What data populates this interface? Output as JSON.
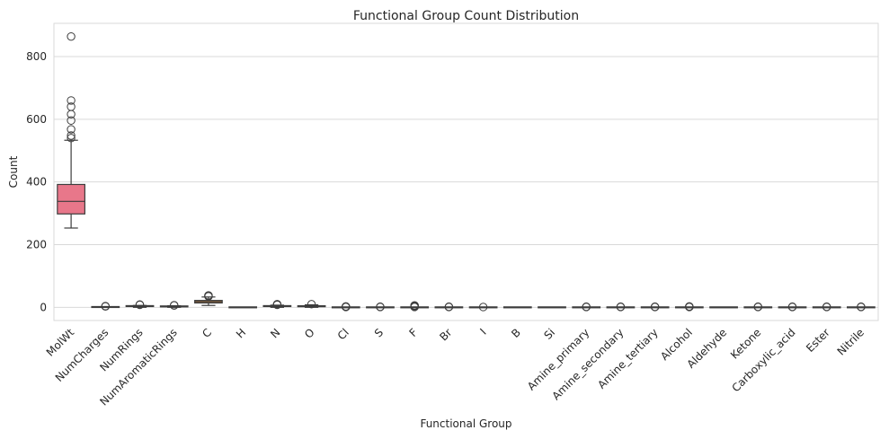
{
  "chart_data": {
    "type": "box",
    "title": "Functional Group Count Distribution",
    "xlabel": "Functional Group",
    "ylabel": "Count",
    "ylim": [
      -42,
      906
    ],
    "yticks": [
      0,
      200,
      400,
      600,
      800
    ],
    "grid": true,
    "colors": {
      "background": "#ffffff",
      "grid": "#d9d9d9",
      "text": "#262626",
      "box_edge": "#3d3d3d",
      "box_fill": "#e8778a",
      "box_fill_2": "#e06c62",
      "box_fill_3": "#d4873c"
    },
    "categories": [
      "MolWt",
      "NumCharges",
      "NumRings",
      "NumAromaticRings",
      "C",
      "H",
      "N",
      "O",
      "Cl",
      "S",
      "F",
      "Br",
      "I",
      "B",
      "Si",
      "Amine_primary",
      "Amine_secondary",
      "Amine_tertiary",
      "Alcohol",
      "Aldehyde",
      "Ketone",
      "Carboxylic_acid",
      "Ester",
      "Nitrile"
    ],
    "boxes": [
      {
        "q1": 298,
        "median": 338,
        "q3": 392,
        "whislo": 253,
        "whishi": 533,
        "fliers": [
          540,
          548,
          568,
          596,
          616,
          640,
          660,
          864
        ]
      },
      {
        "q1": 0,
        "median": 0,
        "q3": 1,
        "whislo": 0,
        "whishi": 2,
        "fliers": [
          3,
          4
        ]
      },
      {
        "q1": 2,
        "median": 3,
        "q3": 4,
        "whislo": 0,
        "whishi": 6,
        "fliers": [
          8,
          9
        ]
      },
      {
        "q1": 1,
        "median": 2,
        "q3": 3,
        "whislo": 0,
        "whishi": 5,
        "fliers": [
          6,
          7
        ]
      },
      {
        "q1": 14,
        "median": 18,
        "q3": 22,
        "whislo": 6,
        "whishi": 33,
        "fliers": [
          35,
          37,
          38
        ]
      },
      {
        "q1": 0,
        "median": 0,
        "q3": 0,
        "whislo": 0,
        "whishi": 0,
        "fliers": []
      },
      {
        "q1": 2,
        "median": 3,
        "q3": 4,
        "whislo": 0,
        "whishi": 7,
        "fliers": [
          8,
          9,
          10
        ]
      },
      {
        "q1": 2,
        "median": 3,
        "q3": 5,
        "whislo": 0,
        "whishi": 8,
        "fliers": [
          10
        ]
      },
      {
        "q1": 0,
        "median": 0,
        "q3": 0,
        "whislo": 0,
        "whishi": 0,
        "fliers": [
          1,
          2,
          3
        ]
      },
      {
        "q1": 0,
        "median": 0,
        "q3": 0,
        "whislo": 0,
        "whishi": 0,
        "fliers": [
          1,
          2
        ]
      },
      {
        "q1": 0,
        "median": 0,
        "q3": 0,
        "whislo": 0,
        "whishi": 0,
        "fliers": [
          1,
          3,
          5,
          6
        ]
      },
      {
        "q1": 0,
        "median": 0,
        "q3": 0,
        "whislo": 0,
        "whishi": 0,
        "fliers": [
          1,
          2
        ]
      },
      {
        "q1": 0,
        "median": 0,
        "q3": 0,
        "whislo": 0,
        "whishi": 0,
        "fliers": [
          1
        ]
      },
      {
        "q1": 0,
        "median": 0,
        "q3": 0,
        "whislo": 0,
        "whishi": 0,
        "fliers": []
      },
      {
        "q1": 0,
        "median": 0,
        "q3": 0,
        "whislo": 0,
        "whishi": 0,
        "fliers": []
      },
      {
        "q1": 0,
        "median": 0,
        "q3": 0,
        "whislo": 0,
        "whishi": 0,
        "fliers": [
          1,
          2
        ]
      },
      {
        "q1": 0,
        "median": 0,
        "q3": 0,
        "whislo": 0,
        "whishi": 0,
        "fliers": [
          1,
          2
        ]
      },
      {
        "q1": 0,
        "median": 0,
        "q3": 0,
        "whislo": 0,
        "whishi": 0,
        "fliers": [
          1,
          2
        ]
      },
      {
        "q1": 0,
        "median": 0,
        "q3": 0,
        "whislo": 0,
        "whishi": 0,
        "fliers": [
          1,
          2,
          3
        ]
      },
      {
        "q1": 0,
        "median": 0,
        "q3": 0,
        "whislo": 0,
        "whishi": 0,
        "fliers": []
      },
      {
        "q1": 0,
        "median": 0,
        "q3": 0,
        "whislo": 0,
        "whishi": 0,
        "fliers": [
          1,
          2
        ]
      },
      {
        "q1": 0,
        "median": 0,
        "q3": 0,
        "whislo": 0,
        "whishi": 0,
        "fliers": [
          1,
          2
        ]
      },
      {
        "q1": 0,
        "median": 0,
        "q3": 0,
        "whislo": 0,
        "whishi": 0,
        "fliers": [
          1,
          2
        ]
      },
      {
        "q1": 0,
        "median": 0,
        "q3": 0,
        "whislo": 0,
        "whishi": 0,
        "fliers": [
          1,
          2
        ]
      }
    ]
  }
}
